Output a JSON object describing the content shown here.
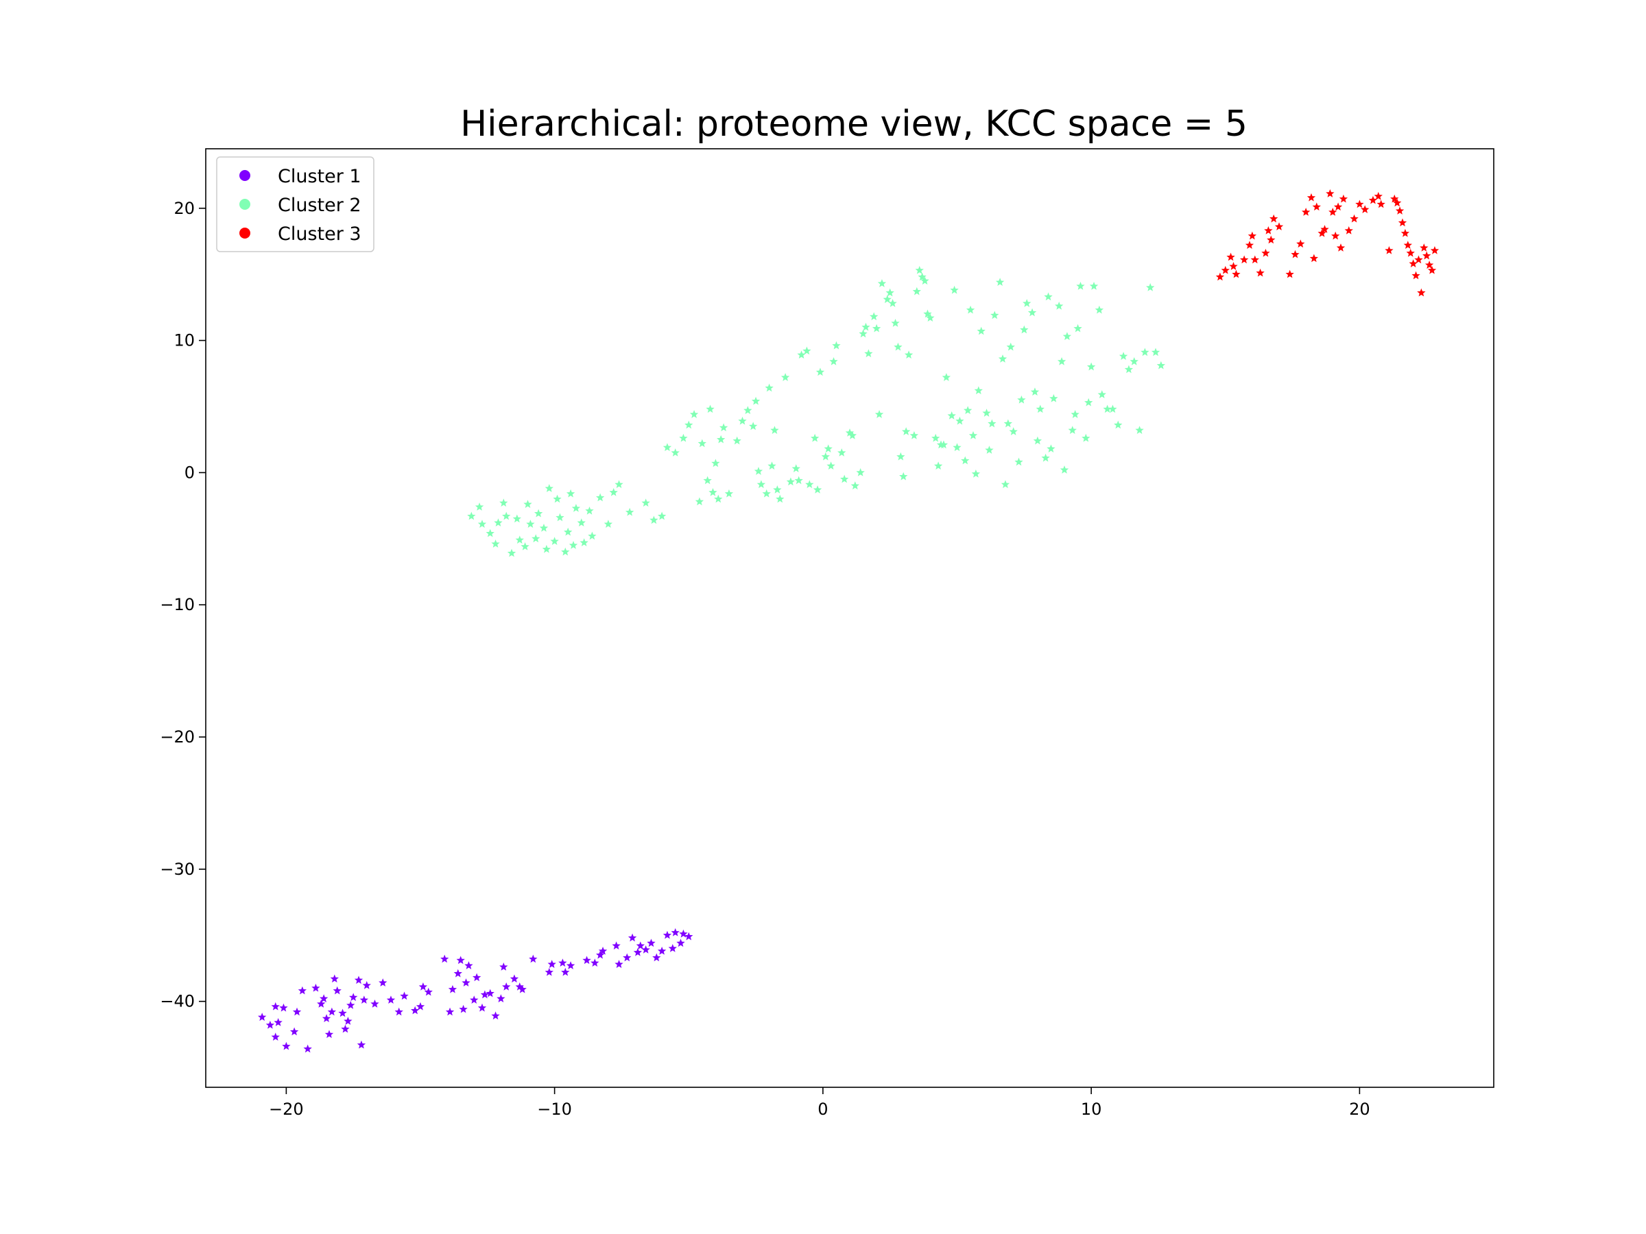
{
  "chart_data": {
    "type": "scatter",
    "title": "Hierarchical: proteome view, KCC space = 5",
    "xlabel": "",
    "ylabel": "",
    "xlim": [
      -23,
      25
    ],
    "ylim": [
      -46.5,
      24.5
    ],
    "x_ticks": [
      -20,
      -10,
      0,
      10,
      20
    ],
    "y_ticks": [
      20,
      10,
      0,
      -10,
      -20,
      -30,
      -40
    ],
    "x_tick_labels": [
      "−20",
      "−10",
      "0",
      "10",
      "20"
    ],
    "y_tick_labels": [
      "20",
      "10",
      "0",
      "−10",
      "−20",
      "−30",
      "−40"
    ],
    "grid": false,
    "legend": "top-left",
    "marker": "star",
    "series": [
      {
        "name": "Cluster 1",
        "color": "#8000ff",
        "points": [
          [
            -20.9,
            -41.2
          ],
          [
            -20.6,
            -41.8
          ],
          [
            -20.4,
            -42.7
          ],
          [
            -20.3,
            -41.6
          ],
          [
            -20.4,
            -40.4
          ],
          [
            -20.1,
            -40.5
          ],
          [
            -20.0,
            -43.4
          ],
          [
            -19.7,
            -42.3
          ],
          [
            -19.6,
            -40.8
          ],
          [
            -19.4,
            -39.2
          ],
          [
            -19.2,
            -43.6
          ],
          [
            -18.9,
            -39.0
          ],
          [
            -18.7,
            -40.2
          ],
          [
            -18.6,
            -39.8
          ],
          [
            -18.5,
            -41.3
          ],
          [
            -18.4,
            -42.5
          ],
          [
            -18.3,
            -40.8
          ],
          [
            -18.2,
            -38.3
          ],
          [
            -18.1,
            -39.2
          ],
          [
            -17.9,
            -40.9
          ],
          [
            -17.8,
            -42.1
          ],
          [
            -17.7,
            -41.5
          ],
          [
            -17.6,
            -40.3
          ],
          [
            -17.5,
            -39.7
          ],
          [
            -17.3,
            -38.4
          ],
          [
            -17.2,
            -43.3
          ],
          [
            -17.1,
            -39.9
          ],
          [
            -17.0,
            -38.8
          ],
          [
            -16.7,
            -40.2
          ],
          [
            -16.4,
            -38.6
          ],
          [
            -16.1,
            -39.9
          ],
          [
            -15.8,
            -40.8
          ],
          [
            -15.6,
            -39.6
          ],
          [
            -15.2,
            -40.7
          ],
          [
            -15.0,
            -40.4
          ],
          [
            -14.9,
            -38.9
          ],
          [
            -14.7,
            -39.3
          ],
          [
            -14.1,
            -36.8
          ],
          [
            -13.9,
            -40.8
          ],
          [
            -13.8,
            -39.1
          ],
          [
            -13.6,
            -37.9
          ],
          [
            -13.5,
            -36.9
          ],
          [
            -13.4,
            -40.6
          ],
          [
            -13.3,
            -38.6
          ],
          [
            -13.2,
            -37.3
          ],
          [
            -13.0,
            -39.9
          ],
          [
            -12.9,
            -38.2
          ],
          [
            -12.7,
            -40.5
          ],
          [
            -12.6,
            -39.5
          ],
          [
            -12.4,
            -39.4
          ],
          [
            -12.2,
            -41.1
          ],
          [
            -12.0,
            -39.8
          ],
          [
            -11.9,
            -37.4
          ],
          [
            -11.8,
            -38.9
          ],
          [
            -11.5,
            -38.3
          ],
          [
            -11.3,
            -38.9
          ],
          [
            -11.2,
            -39.1
          ],
          [
            -10.8,
            -36.8
          ],
          [
            -10.2,
            -37.8
          ],
          [
            -10.1,
            -37.2
          ],
          [
            -9.7,
            -37.1
          ],
          [
            -9.6,
            -37.8
          ],
          [
            -9.4,
            -37.3
          ],
          [
            -8.8,
            -36.9
          ],
          [
            -8.5,
            -37.1
          ],
          [
            -8.3,
            -36.5
          ],
          [
            -8.2,
            -36.2
          ],
          [
            -7.7,
            -35.8
          ],
          [
            -7.6,
            -37.2
          ],
          [
            -7.3,
            -36.7
          ],
          [
            -7.1,
            -35.2
          ],
          [
            -6.9,
            -36.3
          ],
          [
            -6.8,
            -35.8
          ],
          [
            -6.6,
            -36.1
          ],
          [
            -6.4,
            -35.6
          ],
          [
            -6.2,
            -36.7
          ],
          [
            -6.0,
            -36.2
          ],
          [
            -5.8,
            -35.0
          ],
          [
            -5.6,
            -36.0
          ],
          [
            -5.5,
            -34.8
          ],
          [
            -5.3,
            -35.6
          ],
          [
            -5.2,
            -34.9
          ],
          [
            -5.0,
            -35.1
          ]
        ]
      },
      {
        "name": "Cluster 2",
        "color": "#80ffb4",
        "points": [
          [
            -13.1,
            -3.3
          ],
          [
            -12.8,
            -2.6
          ],
          [
            -12.7,
            -3.9
          ],
          [
            -12.4,
            -4.6
          ],
          [
            -12.2,
            -5.4
          ],
          [
            -12.1,
            -3.8
          ],
          [
            -11.9,
            -2.3
          ],
          [
            -11.8,
            -3.3
          ],
          [
            -11.6,
            -6.1
          ],
          [
            -11.4,
            -3.5
          ],
          [
            -11.3,
            -5.1
          ],
          [
            -11.1,
            -5.6
          ],
          [
            -11.0,
            -2.4
          ],
          [
            -10.9,
            -3.9
          ],
          [
            -10.7,
            -5.0
          ],
          [
            -10.6,
            -3.1
          ],
          [
            -10.4,
            -4.2
          ],
          [
            -10.3,
            -5.8
          ],
          [
            -10.2,
            -1.2
          ],
          [
            -10.0,
            -5.2
          ],
          [
            -9.9,
            -2.0
          ],
          [
            -9.8,
            -3.4
          ],
          [
            -9.6,
            -6.0
          ],
          [
            -9.5,
            -4.5
          ],
          [
            -9.4,
            -1.6
          ],
          [
            -9.3,
            -5.5
          ],
          [
            -9.2,
            -2.7
          ],
          [
            -9.0,
            -3.8
          ],
          [
            -8.9,
            -5.3
          ],
          [
            -8.7,
            -2.9
          ],
          [
            -8.6,
            -4.8
          ],
          [
            -8.3,
            -1.9
          ],
          [
            -8.0,
            -3.9
          ],
          [
            -7.8,
            -1.5
          ],
          [
            -7.6,
            -0.9
          ],
          [
            -7.2,
            -3.0
          ],
          [
            -6.6,
            -2.3
          ],
          [
            -6.3,
            -3.6
          ],
          [
            -6.0,
            -3.3
          ],
          [
            -5.8,
            1.9
          ],
          [
            -5.5,
            1.5
          ],
          [
            -5.2,
            2.6
          ],
          [
            -5.0,
            3.6
          ],
          [
            -4.8,
            4.4
          ],
          [
            -4.6,
            -2.2
          ],
          [
            -4.5,
            2.2
          ],
          [
            -4.3,
            -0.6
          ],
          [
            -4.2,
            4.8
          ],
          [
            -4.1,
            -1.5
          ],
          [
            -4.0,
            0.7
          ],
          [
            -3.9,
            -2.0
          ],
          [
            -3.8,
            2.5
          ],
          [
            -3.7,
            3.4
          ],
          [
            -3.5,
            -1.6
          ],
          [
            -3.2,
            2.4
          ],
          [
            -3.0,
            3.9
          ],
          [
            -2.8,
            4.7
          ],
          [
            -2.6,
            3.5
          ],
          [
            -2.5,
            5.4
          ],
          [
            -2.4,
            0.1
          ],
          [
            -2.3,
            -0.9
          ],
          [
            -2.1,
            -1.6
          ],
          [
            -2.0,
            6.4
          ],
          [
            -1.9,
            0.5
          ],
          [
            -1.8,
            3.2
          ],
          [
            -1.7,
            -1.3
          ],
          [
            -1.6,
            -2.0
          ],
          [
            -1.4,
            7.2
          ],
          [
            -1.2,
            -0.7
          ],
          [
            -1.0,
            0.3
          ],
          [
            -0.9,
            -0.6
          ],
          [
            -0.8,
            8.9
          ],
          [
            -0.6,
            9.2
          ],
          [
            -0.5,
            -0.9
          ],
          [
            -0.3,
            2.6
          ],
          [
            -0.2,
            -1.3
          ],
          [
            -0.1,
            7.6
          ],
          [
            0.1,
            1.2
          ],
          [
            0.2,
            1.8
          ],
          [
            0.3,
            0.5
          ],
          [
            0.4,
            8.4
          ],
          [
            0.5,
            9.6
          ],
          [
            0.7,
            1.5
          ],
          [
            0.8,
            -0.5
          ],
          [
            1.0,
            3.0
          ],
          [
            1.1,
            2.8
          ],
          [
            1.2,
            -1.0
          ],
          [
            1.4,
            0.0
          ],
          [
            1.5,
            10.5
          ],
          [
            1.6,
            11.0
          ],
          [
            1.7,
            9.0
          ],
          [
            1.9,
            11.8
          ],
          [
            2.0,
            10.9
          ],
          [
            2.1,
            4.4
          ],
          [
            2.2,
            14.3
          ],
          [
            2.4,
            13.1
          ],
          [
            2.5,
            13.6
          ],
          [
            2.6,
            12.8
          ],
          [
            2.7,
            11.3
          ],
          [
            2.8,
            9.5
          ],
          [
            2.9,
            1.2
          ],
          [
            3.0,
            -0.3
          ],
          [
            3.1,
            3.1
          ],
          [
            3.2,
            8.9
          ],
          [
            3.4,
            2.8
          ],
          [
            3.5,
            13.7
          ],
          [
            3.6,
            15.3
          ],
          [
            3.7,
            14.8
          ],
          [
            3.8,
            14.5
          ],
          [
            3.9,
            12.0
          ],
          [
            4.0,
            11.7
          ],
          [
            4.2,
            2.6
          ],
          [
            4.3,
            0.5
          ],
          [
            4.4,
            2.1
          ],
          [
            4.5,
            2.1
          ],
          [
            4.6,
            7.2
          ],
          [
            4.8,
            4.3
          ],
          [
            4.9,
            13.8
          ],
          [
            5.0,
            1.9
          ],
          [
            5.1,
            3.9
          ],
          [
            5.3,
            0.9
          ],
          [
            5.4,
            4.7
          ],
          [
            5.5,
            12.3
          ],
          [
            5.6,
            2.8
          ],
          [
            5.7,
            -0.1
          ],
          [
            5.8,
            6.2
          ],
          [
            5.9,
            10.7
          ],
          [
            6.1,
            4.5
          ],
          [
            6.2,
            1.7
          ],
          [
            6.3,
            3.7
          ],
          [
            6.4,
            11.9
          ],
          [
            6.6,
            14.4
          ],
          [
            6.7,
            8.6
          ],
          [
            6.8,
            -0.9
          ],
          [
            6.9,
            3.7
          ],
          [
            7.0,
            9.5
          ],
          [
            7.1,
            3.1
          ],
          [
            7.3,
            0.8
          ],
          [
            7.4,
            5.5
          ],
          [
            7.5,
            10.8
          ],
          [
            7.6,
            12.8
          ],
          [
            7.8,
            12.1
          ],
          [
            7.9,
            6.1
          ],
          [
            8.0,
            2.4
          ],
          [
            8.1,
            4.8
          ],
          [
            8.3,
            1.1
          ],
          [
            8.4,
            13.3
          ],
          [
            8.5,
            1.8
          ],
          [
            8.6,
            5.6
          ],
          [
            8.8,
            12.6
          ],
          [
            8.9,
            8.4
          ],
          [
            9.0,
            0.2
          ],
          [
            9.1,
            10.3
          ],
          [
            9.3,
            3.2
          ],
          [
            9.4,
            4.4
          ],
          [
            9.5,
            10.9
          ],
          [
            9.6,
            14.1
          ],
          [
            9.8,
            2.6
          ],
          [
            9.9,
            5.3
          ],
          [
            10.0,
            8.0
          ],
          [
            10.1,
            14.1
          ],
          [
            10.3,
            12.3
          ],
          [
            10.4,
            5.9
          ],
          [
            10.6,
            4.8
          ],
          [
            10.8,
            4.8
          ],
          [
            11.0,
            3.6
          ],
          [
            11.2,
            8.8
          ],
          [
            11.4,
            7.8
          ],
          [
            11.6,
            8.4
          ],
          [
            11.8,
            3.2
          ],
          [
            12.0,
            9.1
          ],
          [
            12.2,
            14.0
          ],
          [
            12.4,
            9.1
          ],
          [
            12.6,
            8.1
          ]
        ]
      },
      {
        "name": "Cluster 3",
        "color": "#ff0000",
        "points": [
          [
            14.8,
            14.8
          ],
          [
            15.0,
            15.3
          ],
          [
            15.2,
            16.3
          ],
          [
            15.3,
            15.6
          ],
          [
            15.4,
            15.0
          ],
          [
            15.7,
            16.1
          ],
          [
            15.9,
            17.2
          ],
          [
            16.0,
            17.9
          ],
          [
            16.1,
            16.1
          ],
          [
            16.3,
            15.1
          ],
          [
            16.5,
            16.6
          ],
          [
            16.6,
            18.3
          ],
          [
            16.7,
            17.6
          ],
          [
            16.8,
            19.2
          ],
          [
            17.0,
            18.6
          ],
          [
            17.4,
            15.0
          ],
          [
            17.6,
            16.5
          ],
          [
            17.8,
            17.3
          ],
          [
            18.0,
            19.7
          ],
          [
            18.2,
            20.8
          ],
          [
            18.3,
            16.2
          ],
          [
            18.4,
            20.1
          ],
          [
            18.6,
            18.1
          ],
          [
            18.7,
            18.4
          ],
          [
            18.9,
            21.1
          ],
          [
            19.0,
            19.7
          ],
          [
            19.1,
            17.9
          ],
          [
            19.2,
            20.1
          ],
          [
            19.3,
            17.0
          ],
          [
            19.4,
            20.7
          ],
          [
            19.6,
            18.3
          ],
          [
            19.8,
            19.2
          ],
          [
            20.0,
            20.3
          ],
          [
            20.2,
            19.9
          ],
          [
            20.5,
            20.6
          ],
          [
            20.7,
            20.9
          ],
          [
            20.8,
            20.3
          ],
          [
            21.1,
            16.8
          ],
          [
            21.3,
            20.7
          ],
          [
            21.4,
            20.4
          ],
          [
            21.5,
            19.8
          ],
          [
            21.6,
            18.9
          ],
          [
            21.7,
            18.1
          ],
          [
            21.8,
            17.2
          ],
          [
            21.9,
            16.6
          ],
          [
            22.0,
            15.8
          ],
          [
            22.1,
            14.9
          ],
          [
            22.2,
            16.1
          ],
          [
            22.3,
            13.6
          ],
          [
            22.4,
            17.0
          ],
          [
            22.5,
            16.4
          ],
          [
            22.6,
            15.7
          ],
          [
            22.7,
            15.3
          ],
          [
            22.8,
            16.8
          ]
        ]
      }
    ]
  }
}
